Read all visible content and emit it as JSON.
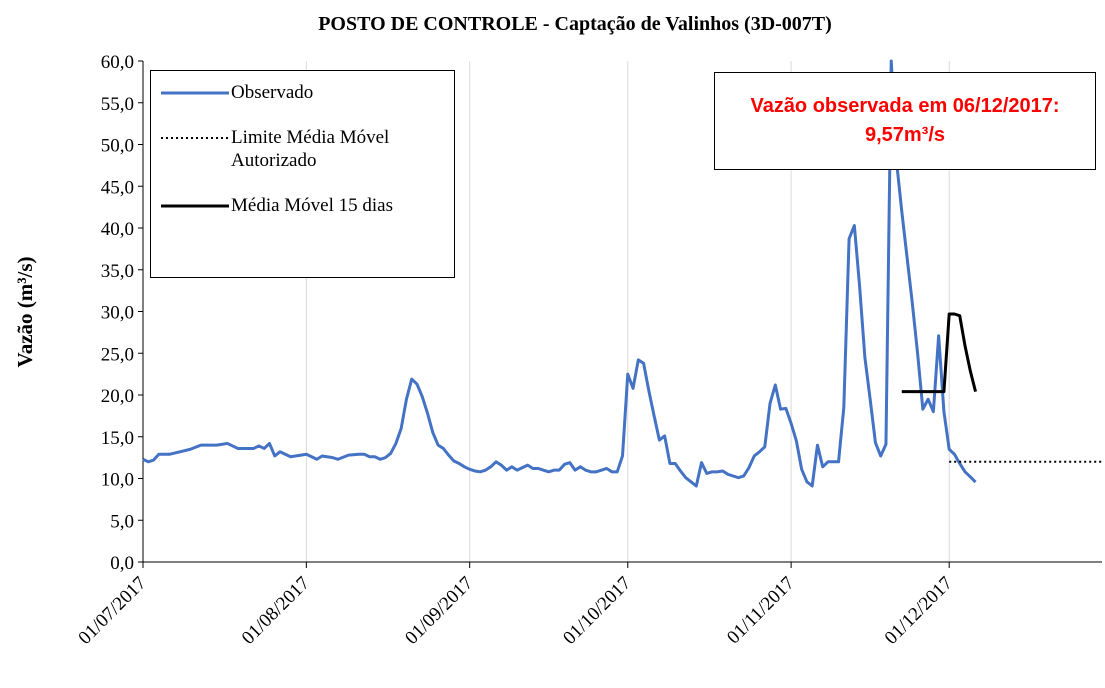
{
  "chart_data": {
    "type": "line",
    "title": "POSTO DE CONTROLE - Captação de Valinhos (3D-007T)",
    "y_label": "Vazão (m³/s)",
    "annotation": {
      "lines": [
        "Vazão observada em 06/12/2017:",
        "9,57m³/s"
      ],
      "color": "#ff0000"
    },
    "xlim": [
      "2017-07-01",
      "2017-12-30"
    ],
    "xticks": [
      {
        "value": "2017-07-01",
        "label": "01/07/2017"
      },
      {
        "value": "2017-08-01",
        "label": "01/08/2017"
      },
      {
        "value": "2017-09-01",
        "label": "01/09/2017"
      },
      {
        "value": "2017-10-01",
        "label": "01/10/2017"
      },
      {
        "value": "2017-11-01",
        "label": "01/11/2017"
      },
      {
        "value": "2017-12-01",
        "label": "01/12/2017"
      }
    ],
    "ylim": [
      0,
      60
    ],
    "yticks": [
      {
        "value": 0,
        "label": "0,0"
      },
      {
        "value": 5,
        "label": "5,0"
      },
      {
        "value": 10,
        "label": "10,0"
      },
      {
        "value": 15,
        "label": "15,0"
      },
      {
        "value": 20,
        "label": "20,0"
      },
      {
        "value": 25,
        "label": "25,0"
      },
      {
        "value": 30,
        "label": "30,0"
      },
      {
        "value": 35,
        "label": "35,0"
      },
      {
        "value": 40,
        "label": "40,0"
      },
      {
        "value": 45,
        "label": "45,0"
      },
      {
        "value": 50,
        "label": "50,0"
      },
      {
        "value": 55,
        "label": "55,0"
      },
      {
        "value": 60,
        "label": "60,0"
      }
    ],
    "grid": "x",
    "legend": "upper left",
    "series": [
      {
        "name": "Observado",
        "color": "#4472c4",
        "line_style": "solid",
        "x": [
          "2017-07-01",
          "2017-07-02",
          "2017-07-03",
          "2017-07-04",
          "2017-07-06",
          "2017-07-08",
          "2017-07-10",
          "2017-07-12",
          "2017-07-15",
          "2017-07-17",
          "2017-07-19",
          "2017-07-22",
          "2017-07-23",
          "2017-07-24",
          "2017-07-25",
          "2017-07-26",
          "2017-07-27",
          "2017-07-29",
          "2017-07-31",
          "2017-08-01",
          "2017-08-03",
          "2017-08-04",
          "2017-08-06",
          "2017-08-07",
          "2017-08-09",
          "2017-08-11",
          "2017-08-12",
          "2017-08-13",
          "2017-08-14",
          "2017-08-15",
          "2017-08-16",
          "2017-08-17",
          "2017-08-18",
          "2017-08-19",
          "2017-08-20",
          "2017-08-21",
          "2017-08-22",
          "2017-08-23",
          "2017-08-24",
          "2017-08-25",
          "2017-08-26",
          "2017-08-27",
          "2017-08-28",
          "2017-08-29",
          "2017-08-30",
          "2017-08-31",
          "2017-09-01",
          "2017-09-02",
          "2017-09-03",
          "2017-09-04",
          "2017-09-05",
          "2017-09-06",
          "2017-09-07",
          "2017-09-08",
          "2017-09-09",
          "2017-09-10",
          "2017-09-11",
          "2017-09-12",
          "2017-09-13",
          "2017-09-14",
          "2017-09-15",
          "2017-09-16",
          "2017-09-17",
          "2017-09-18",
          "2017-09-19",
          "2017-09-20",
          "2017-09-21",
          "2017-09-22",
          "2017-09-23",
          "2017-09-24",
          "2017-09-25",
          "2017-09-26",
          "2017-09-27",
          "2017-09-28",
          "2017-09-29",
          "2017-09-30",
          "2017-10-01",
          "2017-10-02",
          "2017-10-03",
          "2017-10-04",
          "2017-10-05",
          "2017-10-06",
          "2017-10-07",
          "2017-10-08",
          "2017-10-09",
          "2017-10-10",
          "2017-10-11",
          "2017-10-12",
          "2017-10-13",
          "2017-10-14",
          "2017-10-15",
          "2017-10-16",
          "2017-10-17",
          "2017-10-18",
          "2017-10-19",
          "2017-10-20",
          "2017-10-21",
          "2017-10-22",
          "2017-10-23",
          "2017-10-24",
          "2017-10-25",
          "2017-10-26",
          "2017-10-27",
          "2017-10-28",
          "2017-10-29",
          "2017-10-30",
          "2017-10-31",
          "2017-11-01",
          "2017-11-02",
          "2017-11-03",
          "2017-11-04",
          "2017-11-05",
          "2017-11-06",
          "2017-11-07",
          "2017-11-08",
          "2017-11-09",
          "2017-11-10",
          "2017-11-11",
          "2017-11-12",
          "2017-11-13",
          "2017-11-14",
          "2017-11-15",
          "2017-11-16",
          "2017-11-17",
          "2017-11-18",
          "2017-11-19",
          "2017-11-20",
          "2017-11-21",
          "2017-11-22",
          "2017-11-23",
          "2017-11-24",
          "2017-11-25",
          "2017-11-26",
          "2017-11-27",
          "2017-11-28",
          "2017-11-29",
          "2017-11-30",
          "2017-12-01",
          "2017-12-02",
          "2017-12-03",
          "2017-12-04",
          "2017-12-05",
          "2017-12-06"
        ],
        "values": [
          12.3,
          12.0,
          12.2,
          12.9,
          12.9,
          13.2,
          13.5,
          14.0,
          14.0,
          14.2,
          13.6,
          13.6,
          13.9,
          13.6,
          14.2,
          12.7,
          13.2,
          12.6,
          12.8,
          12.9,
          12.3,
          12.7,
          12.5,
          12.3,
          12.8,
          12.9,
          12.9,
          12.6,
          12.6,
          12.3,
          12.5,
          13.0,
          14.2,
          16.0,
          19.5,
          21.9,
          21.3,
          19.8,
          17.8,
          15.5,
          14.0,
          13.6,
          12.8,
          12.1,
          11.8,
          11.4,
          11.1,
          10.9,
          10.8,
          11.0,
          11.4,
          12.0,
          11.6,
          11.0,
          11.4,
          11.0,
          11.3,
          11.6,
          11.2,
          11.2,
          11.0,
          10.8,
          11.0,
          11.0,
          11.7,
          11.9,
          11.0,
          11.4,
          11.0,
          10.8,
          10.8,
          11.0,
          11.2,
          10.8,
          10.8,
          12.7,
          22.5,
          20.8,
          24.2,
          23.8,
          20.5,
          17.5,
          14.6,
          15.1,
          11.8,
          11.8,
          10.9,
          10.1,
          9.6,
          9.1,
          11.9,
          10.6,
          10.8,
          10.8,
          10.9,
          10.5,
          10.3,
          10.1,
          10.3,
          11.3,
          12.7,
          13.2,
          13.8,
          19.0,
          21.2,
          18.3,
          18.4,
          16.6,
          14.5,
          11.1,
          9.6,
          9.1,
          14.0,
          11.4,
          12.0,
          12.0,
          12.0,
          18.5,
          38.7,
          40.3,
          33.0,
          24.5,
          19.5,
          14.3,
          12.7,
          14.1,
          60.0,
          48.0,
          42.0,
          36.5,
          31.0,
          25.0,
          18.3,
          19.5,
          18.0,
          27.1,
          18.0,
          13.5,
          12.9,
          11.8,
          10.8,
          10.2,
          9.57
        ]
      },
      {
        "name": "Limite Média Móvel Autorizado",
        "color": "#000000",
        "line_style": "dotted",
        "x": [
          "2017-12-01",
          "2017-12-30"
        ],
        "values": [
          12.0,
          12.0
        ]
      },
      {
        "name": "Média Móvel 15 dias",
        "color": "#000000",
        "line_style": "solid",
        "x": [
          "2017-11-22",
          "2017-11-30",
          "2017-12-01",
          "2017-12-02",
          "2017-12-03",
          "2017-12-04",
          "2017-12-05",
          "2017-12-06"
        ],
        "values": [
          20.4,
          20.4,
          29.7,
          29.7,
          29.5,
          25.9,
          22.9,
          20.4
        ]
      }
    ]
  }
}
